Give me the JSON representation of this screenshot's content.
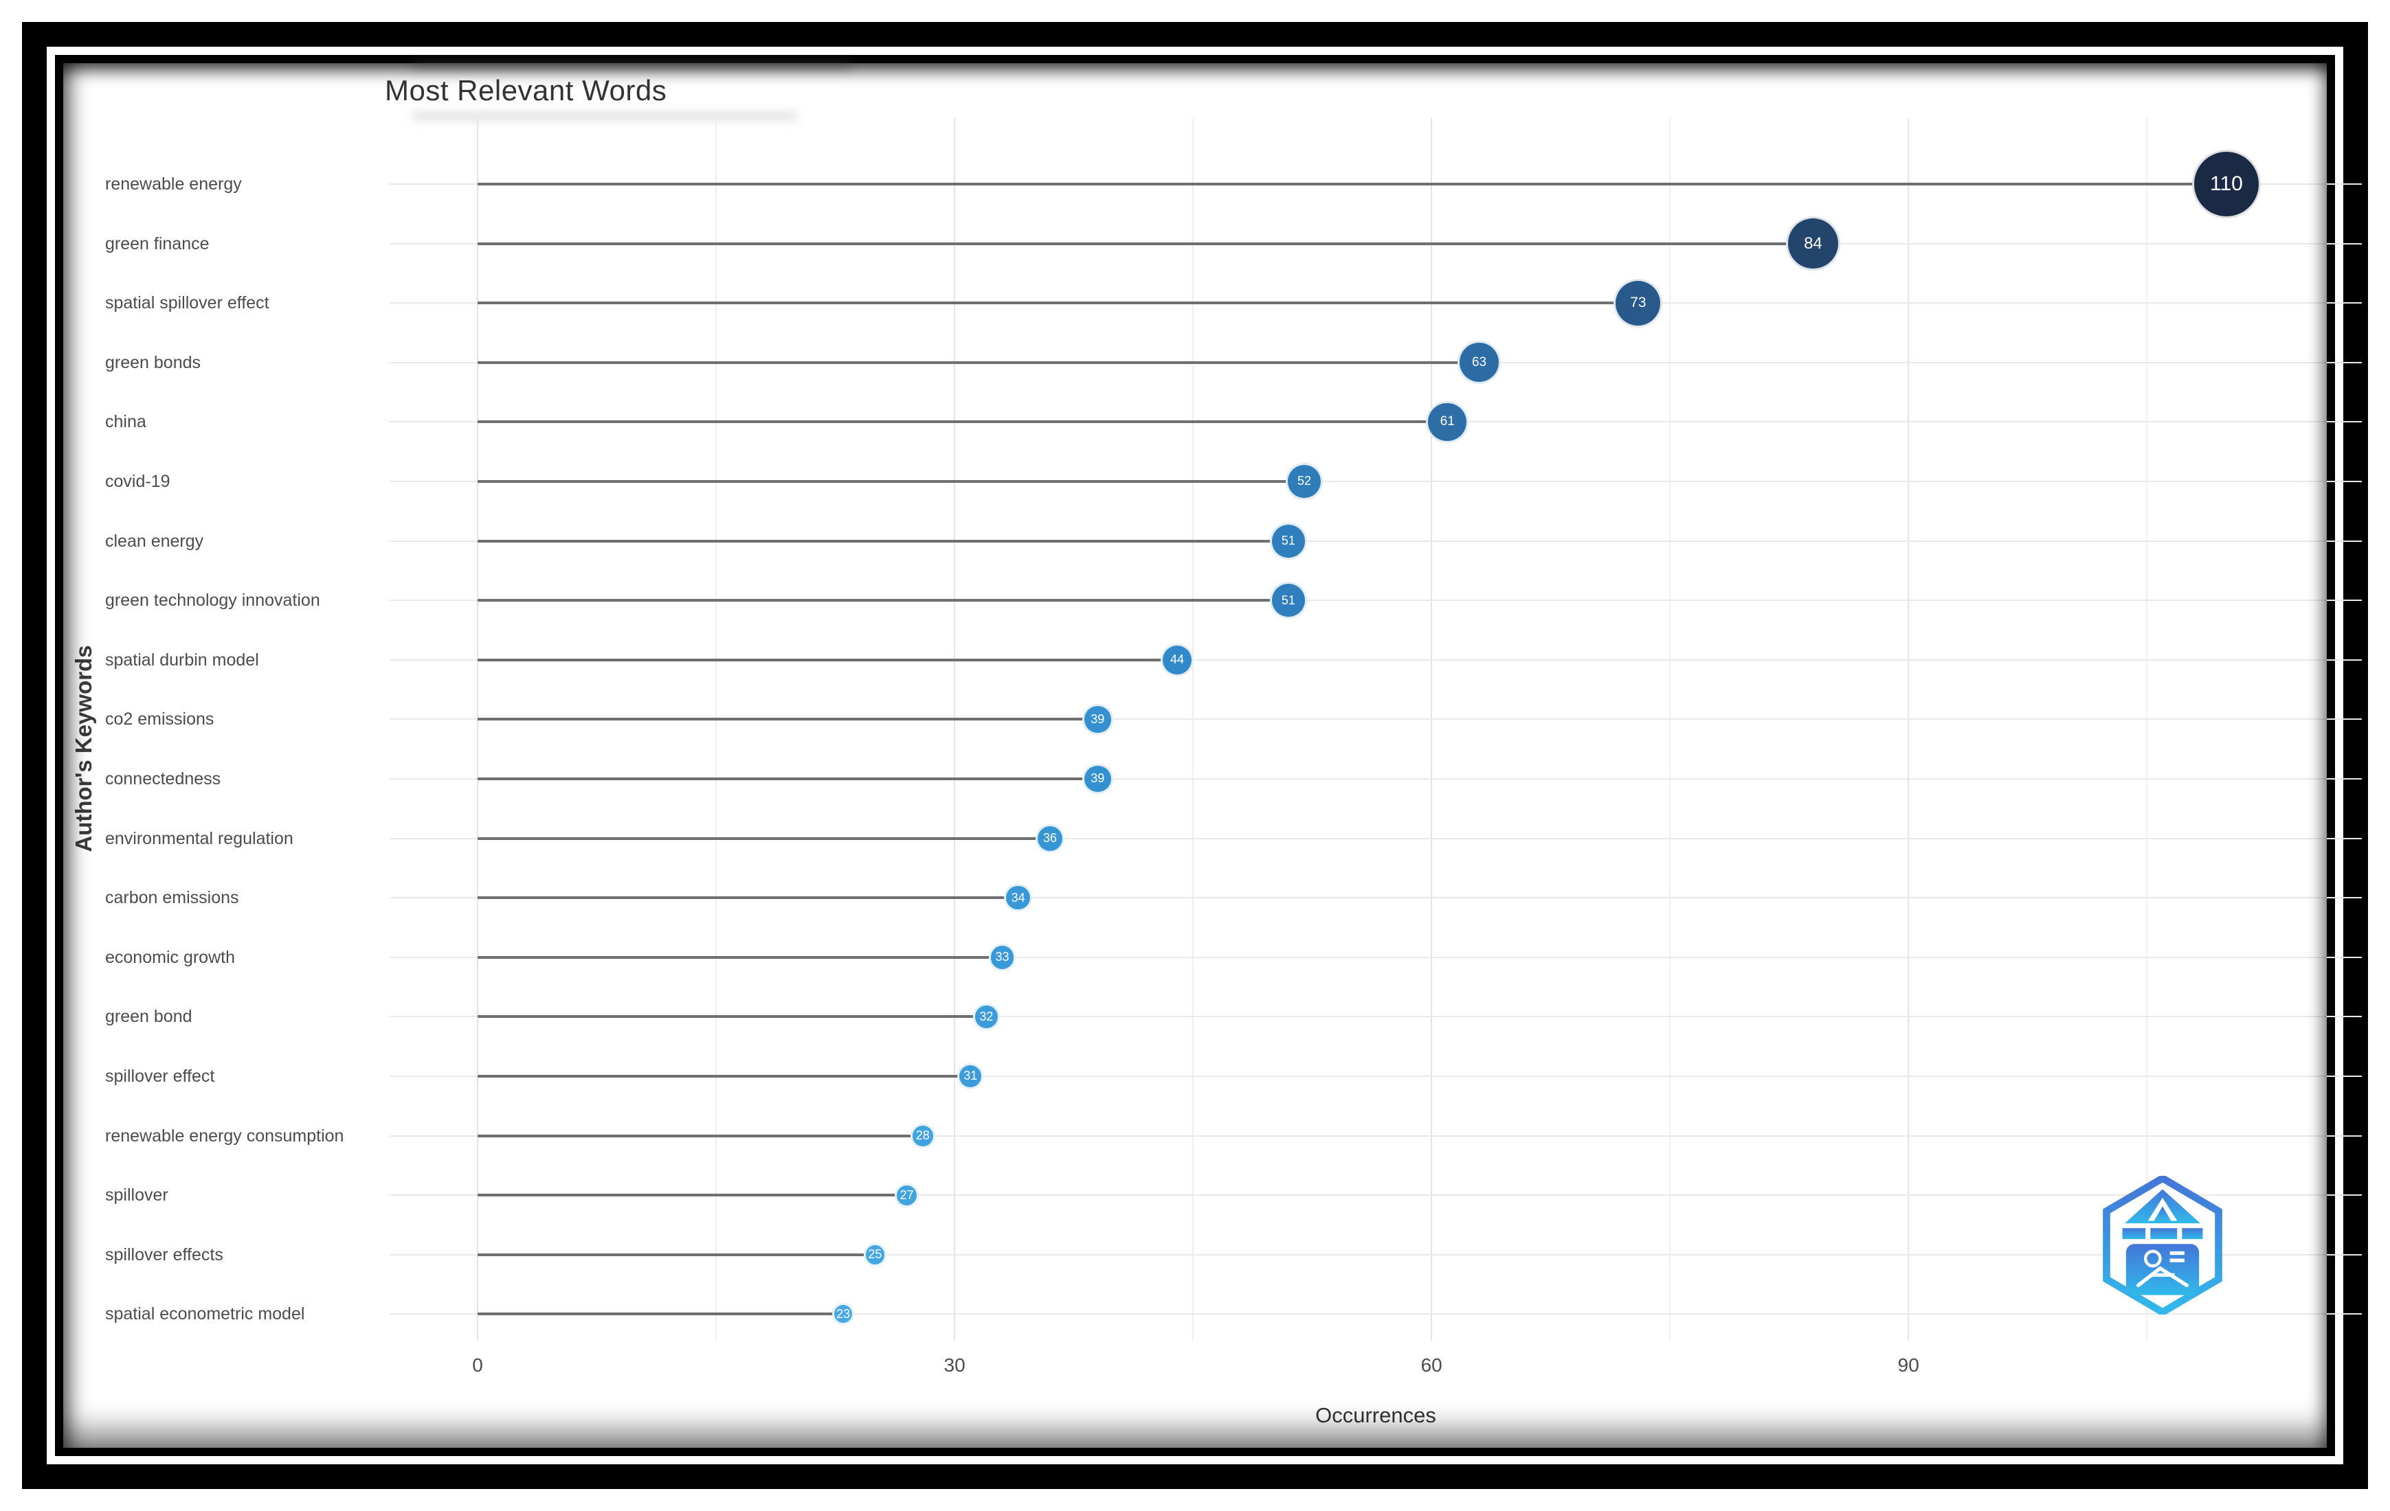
{
  "chart_data": {
    "type": "scatter",
    "variant": "lollipop",
    "title": "Most Relevant Words",
    "xlabel": "Occurrences",
    "ylabel": "Author's Keywords",
    "xlim": [
      -5.5,
      118.5
    ],
    "x_ticks": [
      0,
      30,
      60,
      90
    ],
    "x_grid_step": 15,
    "x_grid_max": 105,
    "grid": true,
    "legend": false,
    "categories": [
      "renewable energy",
      "green finance",
      "spatial spillover effect",
      "green bonds",
      "china",
      "covid-19",
      "clean energy",
      "green technology innovation",
      "spatial durbin model",
      "co2 emissions",
      "connectedness",
      "environmental regulation",
      "carbon emissions",
      "economic growth",
      "green bond",
      "spillover effect",
      "renewable energy consumption",
      "spillover",
      "spillover effects",
      "spatial econometric model"
    ],
    "values": [
      110,
      84,
      73,
      63,
      61,
      52,
      51,
      51,
      44,
      39,
      39,
      36,
      34,
      33,
      32,
      31,
      28,
      27,
      25,
      23
    ],
    "point_colors": [
      "#1b2a44",
      "#23456c",
      "#28598a",
      "#2c6ba3",
      "#2d6ea7",
      "#2f7cba",
      "#2f7ebd",
      "#2f7ebd",
      "#3289c9",
      "#3590d0",
      "#3590d0",
      "#3795d4",
      "#3998d7",
      "#3a9ad9",
      "#3b9cda",
      "#3c9ddc",
      "#40a2e0",
      "#41a4e1",
      "#44a7e4",
      "#47a9e6"
    ],
    "point_label_color": "#ffffff",
    "stem_color": "#6f6f6f",
    "gridline_color": "#e9e9e9"
  },
  "logo": {
    "name": "hexagon-badge-watermark",
    "color_top": "#3a6fd6",
    "color_bottom": "#27b6ea"
  }
}
